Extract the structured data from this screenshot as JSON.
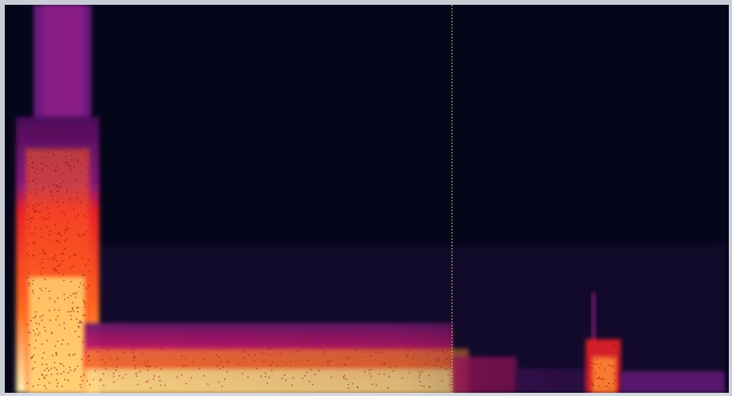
{
  "spectrogram": {
    "colormap": {
      "background": "#06061a",
      "low": "#3a0a5a",
      "mid_low": "#7a1a8a",
      "mid": "#c0186a",
      "mid_high": "#e8222a",
      "high": "#ff7a20",
      "peak": "#fff2b0"
    },
    "cursor": {
      "color": "#d8d060",
      "position_fraction": 0.618
    }
  }
}
